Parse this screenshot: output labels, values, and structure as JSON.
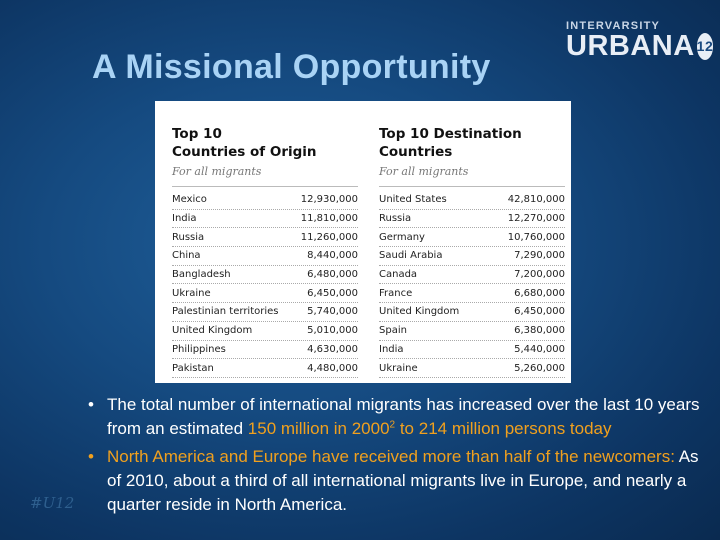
{
  "slide": {
    "title": "A Missional Opportunity",
    "watermark": "#U12"
  },
  "logo": {
    "top": "INTERVARSITY",
    "main": "URBANA",
    "badge": "12"
  },
  "table": {
    "origin": {
      "title_line1": "Top 10",
      "title_line2": "Countries of Origin",
      "subtitle": "For all migrants",
      "rows": [
        {
          "country": "Mexico",
          "value": "12,930,000"
        },
        {
          "country": "India",
          "value": "11,810,000"
        },
        {
          "country": "Russia",
          "value": "11,260,000"
        },
        {
          "country": "China",
          "value": "8,440,000"
        },
        {
          "country": "Bangladesh",
          "value": "6,480,000"
        },
        {
          "country": "Ukraine",
          "value": "6,450,000"
        },
        {
          "country": "Palestinian territories",
          "value": "5,740,000"
        },
        {
          "country": "United Kingdom",
          "value": "5,010,000"
        },
        {
          "country": "Philippines",
          "value": "4,630,000"
        },
        {
          "country": "Pakistan",
          "value": "4,480,000"
        }
      ]
    },
    "destination": {
      "title_line1": "Top 10 Destination",
      "title_line2": "Countries",
      "subtitle": "For all migrants",
      "rows": [
        {
          "country": "United States",
          "value": "42,810,000"
        },
        {
          "country": "Russia",
          "value": "12,270,000"
        },
        {
          "country": "Germany",
          "value": "10,760,000"
        },
        {
          "country": "Saudi Arabia",
          "value": "7,290,000"
        },
        {
          "country": "Canada",
          "value": "7,200,000"
        },
        {
          "country": "France",
          "value": "6,680,000"
        },
        {
          "country": "United Kingdom",
          "value": "6,450,000"
        },
        {
          "country": "Spain",
          "value": "6,380,000"
        },
        {
          "country": "India",
          "value": "5,440,000"
        },
        {
          "country": "Ukraine",
          "value": "5,260,000"
        }
      ]
    }
  },
  "bullets": {
    "marker": "•",
    "b1": {
      "text1": "The total number of international migrants has increased over the last 10 years from an estimated ",
      "hl1": "150 million in 2000",
      "sup": "2",
      "hl2": " to 214 million",
      "text2": " persons today"
    },
    "b2": {
      "hl": "North America and Europe have received more than half of the newcomers:",
      "text": " As of 2010, about a third of all international migrants live in Europe, and nearly a quarter reside in North America."
    }
  },
  "colors": {
    "title": "#a9d3f5",
    "highlight": "#f0a01e",
    "background": "#154a80"
  }
}
